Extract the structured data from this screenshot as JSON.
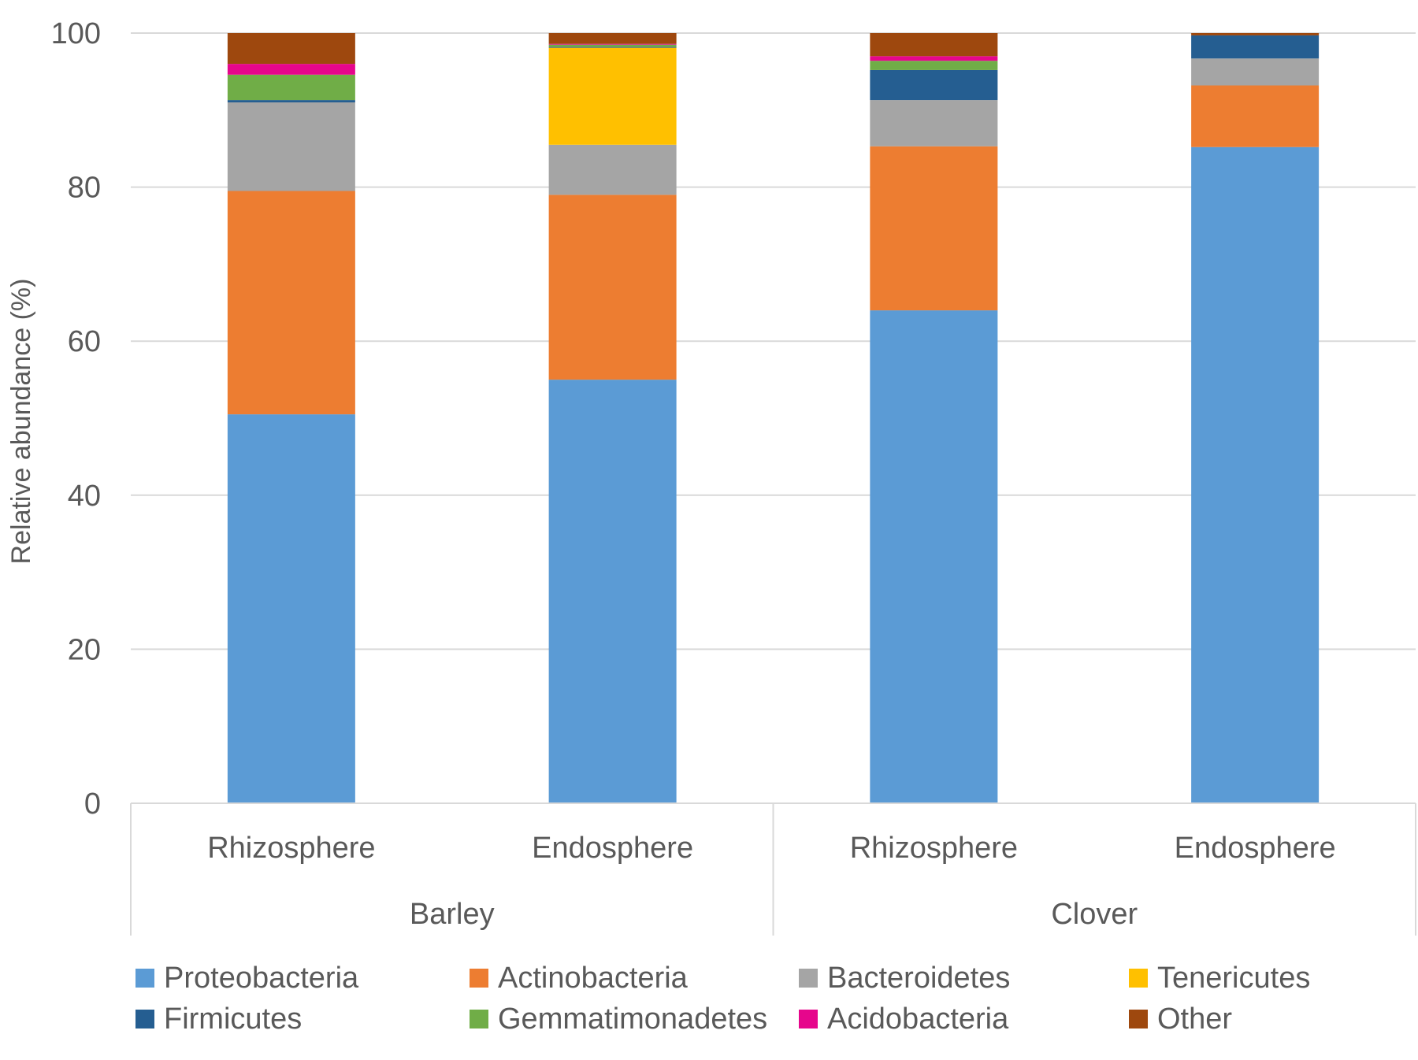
{
  "chart_data": {
    "type": "bar",
    "stacked": true,
    "title": "",
    "xlabel": "",
    "ylabel": "Relative abundance (%)",
    "ylim": [
      0,
      100
    ],
    "yticks": [
      0,
      20,
      40,
      60,
      80,
      100
    ],
    "grid": true,
    "groups": [
      {
        "name": "Barley",
        "categories": [
          "Rhizosphere",
          "Endosphere"
        ]
      },
      {
        "name": "Clover",
        "categories": [
          "Rhizosphere",
          "Endosphere"
        ]
      }
    ],
    "categories": [
      "Rhizosphere",
      "Endosphere",
      "Rhizosphere",
      "Endosphere"
    ],
    "series": [
      {
        "name": "Proteobacteria",
        "color": "#5b9bd5",
        "values": [
          50.5,
          55.0,
          64.0,
          85.2
        ]
      },
      {
        "name": "Actinobacteria",
        "color": "#ed7d31",
        "values": [
          29.0,
          24.0,
          21.3,
          8.0
        ]
      },
      {
        "name": "Bacteroidetes",
        "color": "#a5a5a5",
        "values": [
          11.5,
          6.5,
          6.0,
          3.5
        ]
      },
      {
        "name": "Tenericutes",
        "color": "#ffc000",
        "values": [
          0.0,
          12.6,
          0.0,
          0.0
        ]
      },
      {
        "name": "Firmicutes",
        "color": "#255e91",
        "values": [
          0.3,
          0.1,
          3.9,
          3.0
        ]
      },
      {
        "name": "Gemmatimonadetes",
        "color": "#70ad47",
        "values": [
          3.3,
          0.3,
          1.2,
          0.0
        ]
      },
      {
        "name": "Acidobacteria",
        "color": "#e6068c",
        "values": [
          1.4,
          0.1,
          0.6,
          0.0
        ]
      },
      {
        "name": "Other",
        "color": "#9e480e",
        "values": [
          4.0,
          1.4,
          3.0,
          0.3
        ]
      }
    ],
    "legend": {
      "position": "bottom",
      "items": [
        "Proteobacteria",
        "Actinobacteria",
        "Bacteroidetes",
        "Tenericutes",
        "Firmicutes",
        "Gemmatimonadetes",
        "Acidobacteria",
        "Other"
      ]
    }
  }
}
